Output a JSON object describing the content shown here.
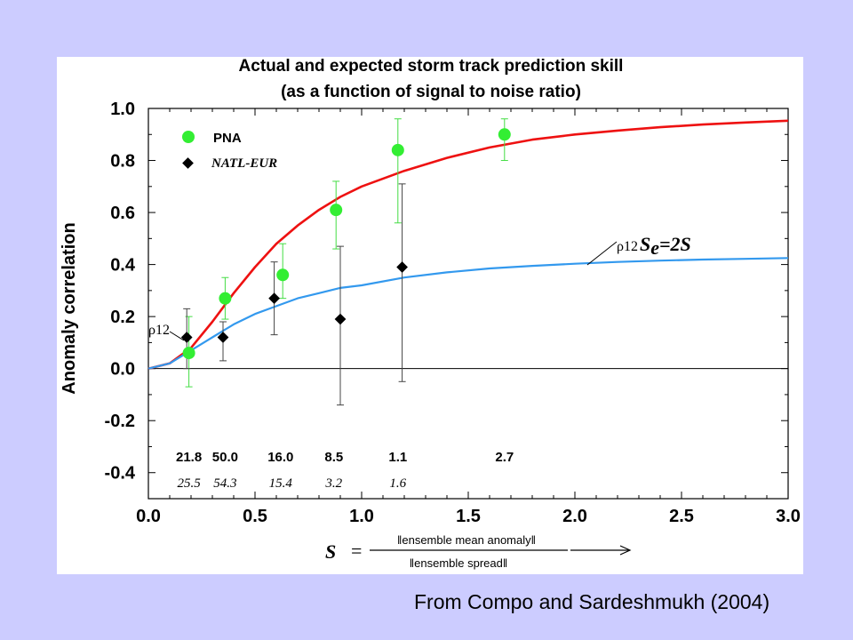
{
  "caption": "From Compo and Sardeshmukh (2004)",
  "chart_data": {
    "type": "scatter",
    "title_line1": "Actual and expected storm track prediction skill",
    "title_line2": "(as a function of signal to noise ratio)",
    "ylabel": "Anomaly correlation",
    "xlabel": {
      "symbol": "S",
      "equals": "=",
      "numerator": "‖ensemble mean anomaly‖",
      "denominator": "‖ensemble spread‖"
    },
    "xlim": [
      0.0,
      3.0
    ],
    "ylim": [
      -0.5,
      1.0
    ],
    "xticks": [
      "0.0",
      "0.5",
      "1.0",
      "1.5",
      "2.0",
      "2.5",
      "3.0"
    ],
    "yticks": [
      "-0.4",
      "-0.2",
      "0.0",
      "0.2",
      "0.4",
      "0.6",
      "0.8",
      "1.0"
    ],
    "xtick_values": [
      0.0,
      0.5,
      1.0,
      1.5,
      2.0,
      2.5,
      3.0
    ],
    "ytick_values": [
      -0.4,
      -0.2,
      0.0,
      0.2,
      0.4,
      0.6,
      0.8,
      1.0
    ],
    "series": [
      {
        "name": "PNA",
        "marker": "circle",
        "color": "#33ee33",
        "points": [
          {
            "x": 0.19,
            "y": 0.06,
            "lo": -0.07,
            "hi": 0.2
          },
          {
            "x": 0.36,
            "y": 0.27,
            "lo": 0.19,
            "hi": 0.35
          },
          {
            "x": 0.63,
            "y": 0.36,
            "lo": 0.27,
            "hi": 0.48
          },
          {
            "x": 0.88,
            "y": 0.61,
            "lo": 0.46,
            "hi": 0.72
          },
          {
            "x": 1.17,
            "y": 0.84,
            "lo": 0.56,
            "hi": 0.96
          },
          {
            "x": 1.67,
            "y": 0.9,
            "lo": 0.8,
            "hi": 0.96
          }
        ]
      },
      {
        "name": "NATL-EUR",
        "marker": "diamond",
        "color": "#000000",
        "points": [
          {
            "x": 0.18,
            "y": 0.12,
            "lo": 0.0,
            "hi": 0.23
          },
          {
            "x": 0.35,
            "y": 0.12,
            "lo": 0.03,
            "hi": 0.18
          },
          {
            "x": 0.59,
            "y": 0.27,
            "lo": 0.13,
            "hi": 0.41
          },
          {
            "x": 0.9,
            "y": 0.19,
            "lo": -0.14,
            "hi": 0.47
          },
          {
            "x": 1.19,
            "y": 0.39,
            "lo": -0.05,
            "hi": 0.71
          }
        ]
      }
    ],
    "curves": [
      {
        "name": "red",
        "color": "#ee1111",
        "x": [
          0.0,
          0.1,
          0.2,
          0.3,
          0.4,
          0.5,
          0.6,
          0.7,
          0.8,
          0.9,
          1.0,
          1.2,
          1.4,
          1.6,
          1.8,
          2.0,
          2.2,
          2.4,
          2.6,
          2.8,
          3.0
        ],
        "y": [
          0.0,
          0.02,
          0.08,
          0.18,
          0.29,
          0.39,
          0.48,
          0.55,
          0.61,
          0.66,
          0.7,
          0.76,
          0.81,
          0.85,
          0.88,
          0.9,
          0.915,
          0.928,
          0.938,
          0.946,
          0.953
        ]
      },
      {
        "name": "blue",
        "color": "#3399ee",
        "x": [
          0.0,
          0.1,
          0.2,
          0.3,
          0.4,
          0.5,
          0.6,
          0.7,
          0.8,
          0.9,
          1.0,
          1.2,
          1.4,
          1.6,
          1.8,
          2.0,
          2.2,
          2.4,
          2.6,
          2.8,
          3.0
        ],
        "y": [
          0.0,
          0.02,
          0.07,
          0.12,
          0.17,
          0.21,
          0.24,
          0.27,
          0.29,
          0.31,
          0.32,
          0.35,
          0.37,
          0.385,
          0.395,
          0.403,
          0.41,
          0.415,
          0.419,
          0.422,
          0.425
        ]
      }
    ],
    "legend": {
      "placement": "top-left",
      "items": [
        {
          "label": "PNA",
          "marker": "circle",
          "color": "#33ee33"
        },
        {
          "label": "NATL-EUR",
          "marker": "diamond",
          "color": "#000000"
        }
      ]
    },
    "annotations": {
      "rho_label": "ρ12",
      "curve_label_rho": "ρ12",
      "curve_label_S": "S",
      "curve_label_sub": "e",
      "curve_label_rest": "=2S"
    },
    "counts_row1": [
      {
        "x": 0.19,
        "label": "21.8"
      },
      {
        "x": 0.36,
        "label": "50.0"
      },
      {
        "x": 0.62,
        "label": "16.0"
      },
      {
        "x": 0.87,
        "label": "8.5"
      },
      {
        "x": 1.17,
        "label": "1.1"
      },
      {
        "x": 1.67,
        "label": "2.7"
      }
    ],
    "counts_row2": [
      {
        "x": 0.19,
        "label": "25.5"
      },
      {
        "x": 0.36,
        "label": "54.3"
      },
      {
        "x": 0.62,
        "label": "15.4"
      },
      {
        "x": 0.87,
        "label": "3.2"
      },
      {
        "x": 1.17,
        "label": "1.6"
      }
    ],
    "zero_line": true,
    "grid": false
  }
}
